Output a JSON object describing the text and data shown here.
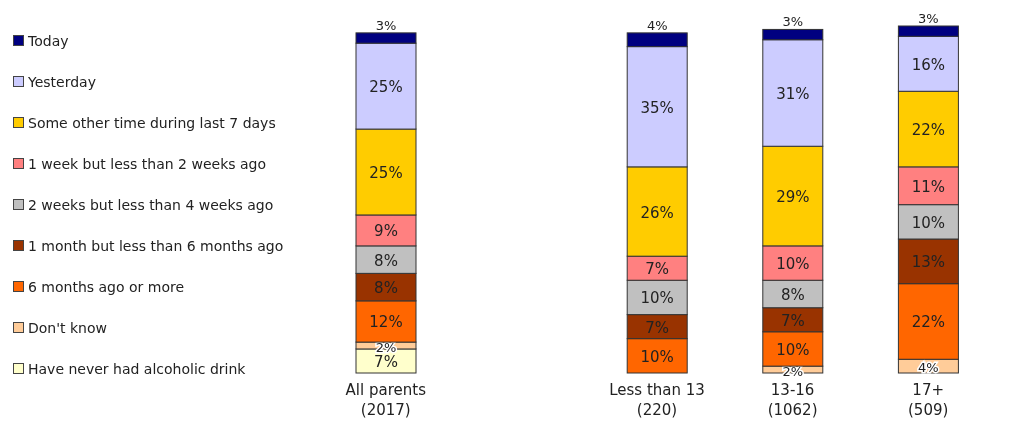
{
  "chart_data": {
    "type": "bar",
    "stacked": true,
    "legend": "left",
    "categories": [
      "All parents\n(2017)",
      null,
      "Less than 13\n(220)",
      "13-16\n(1062)",
      "17+\n(509)"
    ],
    "series": [
      {
        "name": "Have never had alcoholic drink",
        "color": "#ffffcc",
        "values": [
          7,
          null,
          null,
          null,
          null
        ],
        "value_labels": [
          "7%",
          null,
          null,
          null,
          null
        ]
      },
      {
        "name": "Don't know",
        "color": "#ffcc99",
        "values": [
          2,
          null,
          null,
          2,
          4
        ],
        "value_labels": [
          "2%",
          null,
          null,
          "2%",
          "4%"
        ]
      },
      {
        "name": "6 months ago or more",
        "color": "#ff6600",
        "values": [
          12,
          null,
          10,
          10,
          22
        ],
        "value_labels": [
          "12%",
          null,
          "10%",
          "10%",
          "22%"
        ]
      },
      {
        "name": "1 month but less than 6 months ago",
        "color": "#993300",
        "values": [
          8,
          null,
          7,
          7,
          13
        ],
        "value_labels": [
          "8%",
          null,
          "7%",
          "7%",
          "13%"
        ]
      },
      {
        "name": "2 weeks but less than 4 weeks ago",
        "color": "#c0c0c0",
        "values": [
          8,
          null,
          10,
          8,
          10
        ],
        "value_labels": [
          "8%",
          null,
          "10%",
          "8%",
          "10%"
        ]
      },
      {
        "name": "1 week but less than 2 weeks ago",
        "color": "#ff8080",
        "values": [
          9,
          null,
          7,
          10,
          11
        ],
        "value_labels": [
          "9%",
          null,
          "7%",
          "10%",
          "11%"
        ]
      },
      {
        "name": "Some other time during last 7 days",
        "color": "#ffcc00",
        "values": [
          25,
          null,
          26,
          29,
          22
        ],
        "value_labels": [
          "25%",
          null,
          "26%",
          "29%",
          "22%"
        ]
      },
      {
        "name": "Yesterday",
        "color": "#ccccff",
        "values": [
          25,
          null,
          35,
          31,
          16
        ],
        "value_labels": [
          "25%",
          null,
          "35%",
          "31%",
          "16%"
        ]
      },
      {
        "name": "Today",
        "color": "#000080",
        "values": [
          3,
          null,
          4,
          3,
          3
        ],
        "value_labels": [
          "3%",
          null,
          "4%",
          "3%",
          "3%"
        ]
      }
    ]
  }
}
